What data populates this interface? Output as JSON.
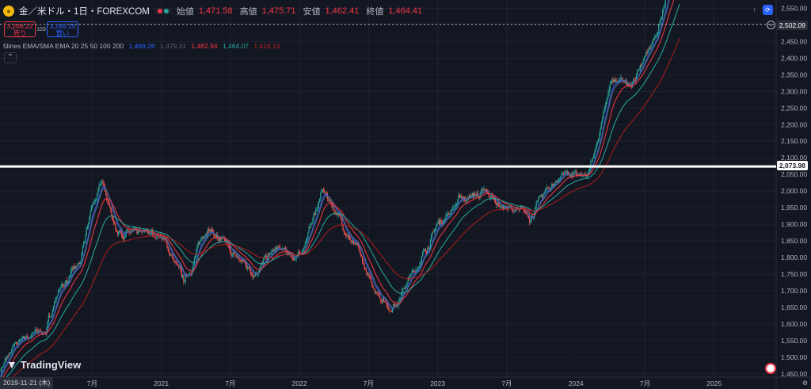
{
  "header": {
    "symbol": "金／米ドル・1日・FOREXCOM",
    "open_label": "始値",
    "open": "1,471.58",
    "high_label": "高値",
    "high": "1,475.71",
    "low_label": "安値",
    "low": "1,462.41",
    "close_label": "終値",
    "close": "1,464.41"
  },
  "trade": {
    "sell_price": "3,288.22",
    "sell_label": "売り",
    "spread": "103",
    "buy_price": "3,289.25",
    "buy_label": "買い"
  },
  "indicator": {
    "name": "5lines EMA/SMA EMA 20 25 50 100 200",
    "values": [
      {
        "text": "1,469.26",
        "color": "#2962ff"
      },
      {
        "text": "1,479.31",
        "color": "#5d606b"
      },
      {
        "text": "1,482.94",
        "color": "#f23645"
      },
      {
        "text": "1,464.07",
        "color": "#26a69a"
      },
      {
        "text": "1,416.19",
        "color": "#b71c1c"
      }
    ]
  },
  "price_labels": {
    "current": "2,502.09",
    "horizontal_line": "2,073.98"
  },
  "cursor_date": "2019-11-21 (木)",
  "logo": "TradingView",
  "chart_data": {
    "type": "candlestick",
    "y_axis_ticks": [
      1450,
      1500,
      1550,
      1600,
      1650,
      1700,
      1750,
      1800,
      1850,
      1900,
      1950,
      2000,
      2050,
      2100,
      2150,
      2200,
      2250,
      2300,
      2350,
      2400,
      2450,
      2500,
      2550
    ],
    "ylim": [
      1440,
      2575
    ],
    "x_ticks": [
      {
        "label": "7月",
        "date": "2020-07"
      },
      {
        "label": "2021",
        "date": "2021-01"
      },
      {
        "label": "7月",
        "date": "2021-07"
      },
      {
        "label": "2022",
        "date": "2022-01"
      },
      {
        "label": "7月",
        "date": "2022-07"
      },
      {
        "label": "2023",
        "date": "2023-01"
      },
      {
        "label": "7月",
        "date": "2023-07"
      },
      {
        "label": "2024",
        "date": "2024-01"
      },
      {
        "label": "7月",
        "date": "2024-07"
      },
      {
        "label": "2025",
        "date": "2025-01"
      }
    ],
    "xlim": [
      "2019-11",
      "2025-07"
    ],
    "horizontal_line": 2073.98,
    "current_price_line": 2502.09,
    "price_path": [
      [
        "2019-11",
        1464
      ],
      [
        "2020-01",
        1560
      ],
      [
        "2020-03",
        1580
      ],
      [
        "2020-04",
        1700
      ],
      [
        "2020-06",
        1780
      ],
      [
        "2020-07",
        1960
      ],
      [
        "2020-08",
        2030
      ],
      [
        "2020-09",
        1890
      ],
      [
        "2020-11",
        1860
      ],
      [
        "2021-01",
        1870
      ],
      [
        "2021-03",
        1720
      ],
      [
        "2021-05",
        1900
      ],
      [
        "2021-07",
        1810
      ],
      [
        "2021-09",
        1760
      ],
      [
        "2021-11",
        1820
      ],
      [
        "2022-01",
        1800
      ],
      [
        "2022-03",
        2000
      ],
      [
        "2022-04",
        1950
      ],
      [
        "2022-06",
        1820
      ],
      [
        "2022-07",
        1730
      ],
      [
        "2022-09",
        1650
      ],
      [
        "2022-11",
        1760
      ],
      [
        "2023-01",
        1900
      ],
      [
        "2023-03",
        1980
      ],
      [
        "2023-05",
        1990
      ],
      [
        "2023-07",
        1950
      ],
      [
        "2023-09",
        1920
      ],
      [
        "2023-10",
        1980
      ],
      [
        "2023-12",
        2060
      ],
      [
        "2024-02",
        2030
      ],
      [
        "2024-04",
        2320
      ],
      [
        "2024-06",
        2330
      ],
      [
        "2024-08",
        2480
      ],
      [
        "2024-10",
        2700
      ]
    ],
    "series": [
      {
        "name": "EMA 20",
        "color": "#2962ff"
      },
      {
        "name": "EMA 25",
        "color": "#5d606b"
      },
      {
        "name": "EMA 50",
        "color": "#f23645"
      },
      {
        "name": "EMA 100",
        "color": "#26a69a"
      },
      {
        "name": "EMA 200",
        "color": "#b71c1c"
      }
    ],
    "up_color": "#26a69a",
    "down_color": "#ef5350"
  }
}
